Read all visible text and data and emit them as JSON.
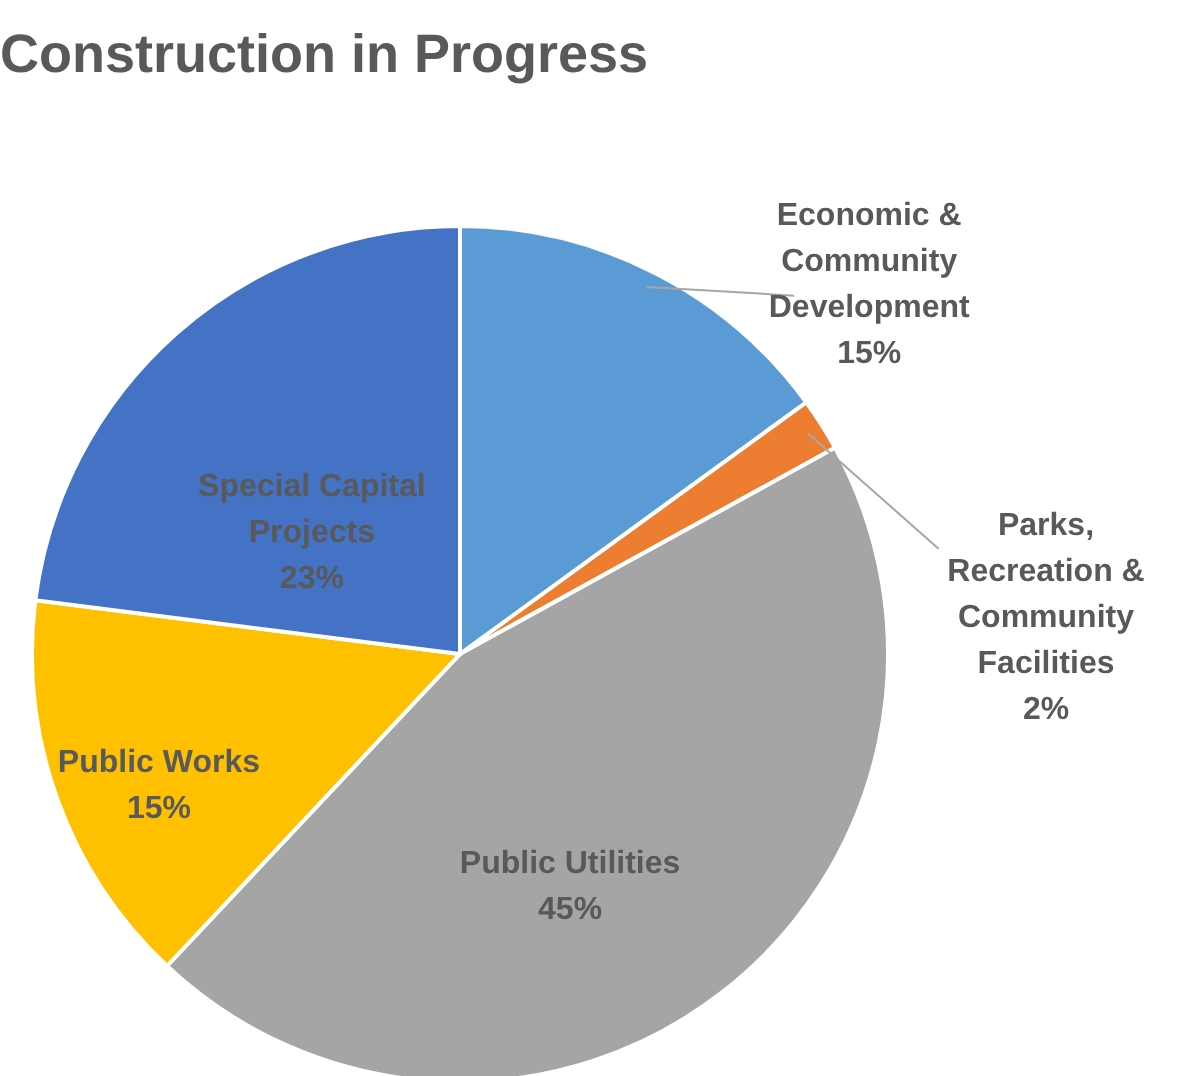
{
  "chart_data": {
    "type": "pie",
    "title": "Construction in Progress",
    "categories": [
      "Economic & Community Development",
      "Parks, Recreation & Community Facilities",
      "Public Utilities",
      "Public Works",
      "Special Capital Projects"
    ],
    "values": [
      15,
      2,
      45,
      15,
      23
    ],
    "value_labels": [
      "15%",
      "2%",
      "45%",
      "15%",
      "23%"
    ],
    "colors": [
      "#5b9bd5",
      "#ed7d31",
      "#a5a5a5",
      "#ffc000",
      "#4472c4"
    ]
  }
}
